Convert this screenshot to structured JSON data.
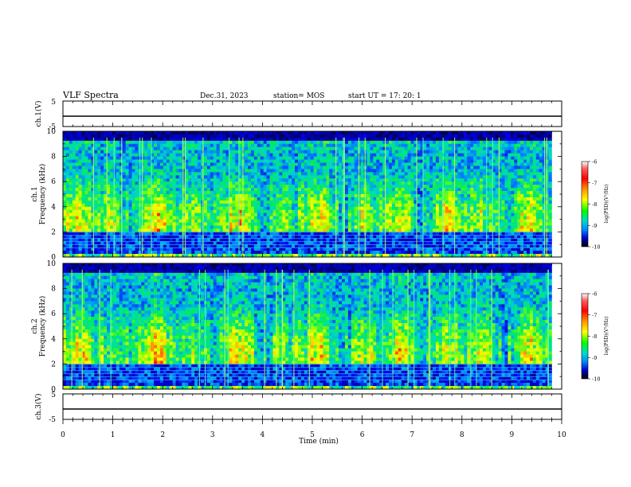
{
  "header": {
    "title": "VLF Spectra",
    "date": "Dec.31, 2023",
    "station": "station= MOS",
    "start_ut": "start  UT =   17: 20: 1"
  },
  "chart_data": [
    {
      "type": "line",
      "panel": "ch1-waveform",
      "ylabel": "ch.1(V)",
      "ylim": [
        -5,
        5
      ],
      "y_ticks": [
        "5",
        "-5"
      ],
      "x": [
        0,
        10
      ],
      "values": [
        0,
        0
      ],
      "xlim": [
        0,
        10
      ]
    },
    {
      "type": "heatmap",
      "panel": "ch1-spectrogram",
      "ylabel": "ch.1\nFrequency (kHz)",
      "ylim": [
        0,
        10
      ],
      "y_ticks": [
        "0",
        "2",
        "4",
        "6",
        "8",
        "10"
      ],
      "xlim": [
        0,
        9.8
      ],
      "colorbar": {
        "label": "log(PSD)(V²/Hz)",
        "range": [
          -10,
          -6
        ],
        "ticks": [
          "-6",
          "-7",
          "-8",
          "-9",
          "-10"
        ]
      }
    },
    {
      "type": "heatmap",
      "panel": "ch2-spectrogram",
      "ylabel": "ch.2\nFrequency (kHz)",
      "ylim": [
        0,
        10
      ],
      "y_ticks": [
        "0",
        "2",
        "4",
        "6",
        "8",
        "10"
      ],
      "xlim": [
        0,
        9.8
      ],
      "colorbar": {
        "label": "log(PSD)(V²/Hz)",
        "range": [
          -10,
          -6
        ],
        "ticks": [
          "-6",
          "-7",
          "-8",
          "-9",
          "-10"
        ]
      }
    },
    {
      "type": "line",
      "panel": "ch3-waveform",
      "ylabel": "ch.3(V)",
      "ylim": [
        -5,
        5
      ],
      "y_ticks": [
        "5",
        "-5"
      ],
      "x": [
        0,
        10
      ],
      "values": [
        0,
        0
      ],
      "xlim": [
        0,
        10
      ]
    }
  ],
  "x_axis": {
    "label": "Time (min)",
    "ticks": [
      "0",
      "1",
      "2",
      "3",
      "4",
      "5",
      "6",
      "7",
      "8",
      "9",
      "10"
    ]
  }
}
